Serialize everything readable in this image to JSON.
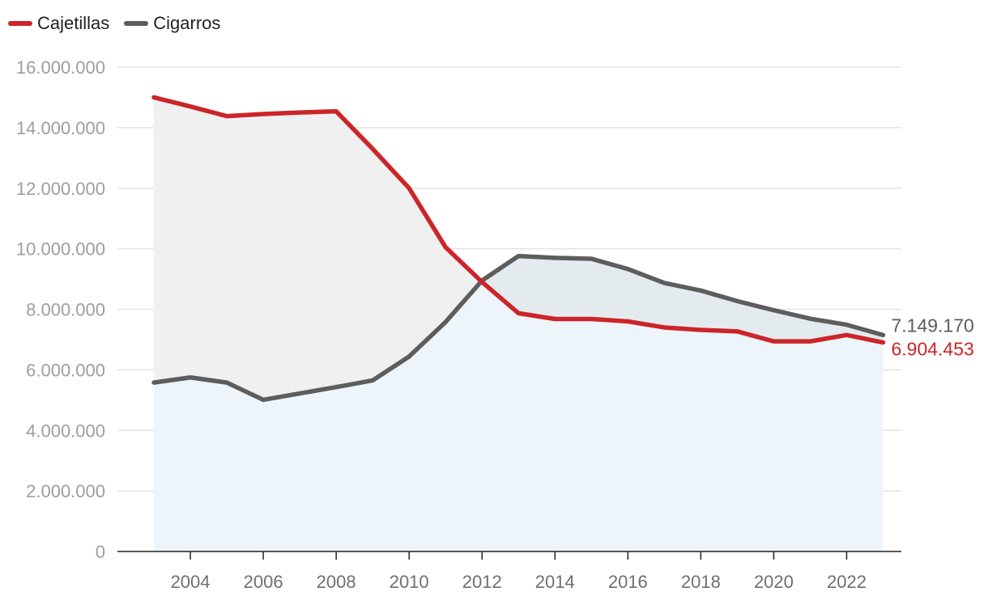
{
  "chart_data": {
    "type": "line",
    "title": "",
    "xlabel": "",
    "ylabel": "",
    "x": [
      2003,
      2004,
      2005,
      2006,
      2007,
      2008,
      2009,
      2010,
      2011,
      2012,
      2013,
      2014,
      2015,
      2016,
      2017,
      2018,
      2019,
      2020,
      2021,
      2022,
      2023
    ],
    "xlim": [
      2002,
      2023.5
    ],
    "ylim": [
      0,
      16000000
    ],
    "y_ticks": [
      0,
      2000000,
      4000000,
      6000000,
      8000000,
      10000000,
      12000000,
      14000000,
      16000000
    ],
    "y_tick_labels": [
      "0",
      "2.000.000",
      "4.000.000",
      "6.000.000",
      "8.000.000",
      "10.000.000",
      "12.000.000",
      "14.000.000",
      "16.000.000"
    ],
    "x_ticks": [
      2004,
      2006,
      2008,
      2010,
      2012,
      2014,
      2016,
      2018,
      2020,
      2022
    ],
    "x_tick_labels": [
      "2004",
      "2006",
      "2008",
      "2010",
      "2012",
      "2014",
      "2016",
      "2018",
      "2020",
      "2022"
    ],
    "grid": "horizontal",
    "legend_position": "top-left",
    "series": [
      {
        "name": "Cajetillas",
        "color": "#cc2529",
        "values": [
          15000000,
          14700000,
          14380000,
          14450000,
          14500000,
          14540000,
          13300000,
          12000000,
          10050000,
          8900000,
          7870000,
          7680000,
          7680000,
          7600000,
          7400000,
          7320000,
          7270000,
          6940000,
          6940000,
          7150000,
          6904453
        ],
        "end_label": "6.904.453"
      },
      {
        "name": "Cigarros",
        "color": "#5d5d5d",
        "values": [
          5580000,
          5750000,
          5580000,
          5010000,
          5220000,
          5430000,
          5650000,
          6440000,
          7580000,
          8950000,
          9760000,
          9700000,
          9670000,
          9330000,
          8870000,
          8620000,
          8270000,
          7970000,
          7690000,
          7490000,
          7149170
        ],
        "end_label": "7.149.170"
      }
    ],
    "fill_colors": {
      "lower": "#edf5fb",
      "gap_cajetillas_above": "#f0f0f0",
      "gap_cigarros_above": "#e4ebef"
    },
    "axis_color": "#222222",
    "grid_color": "#e3e3e3"
  }
}
